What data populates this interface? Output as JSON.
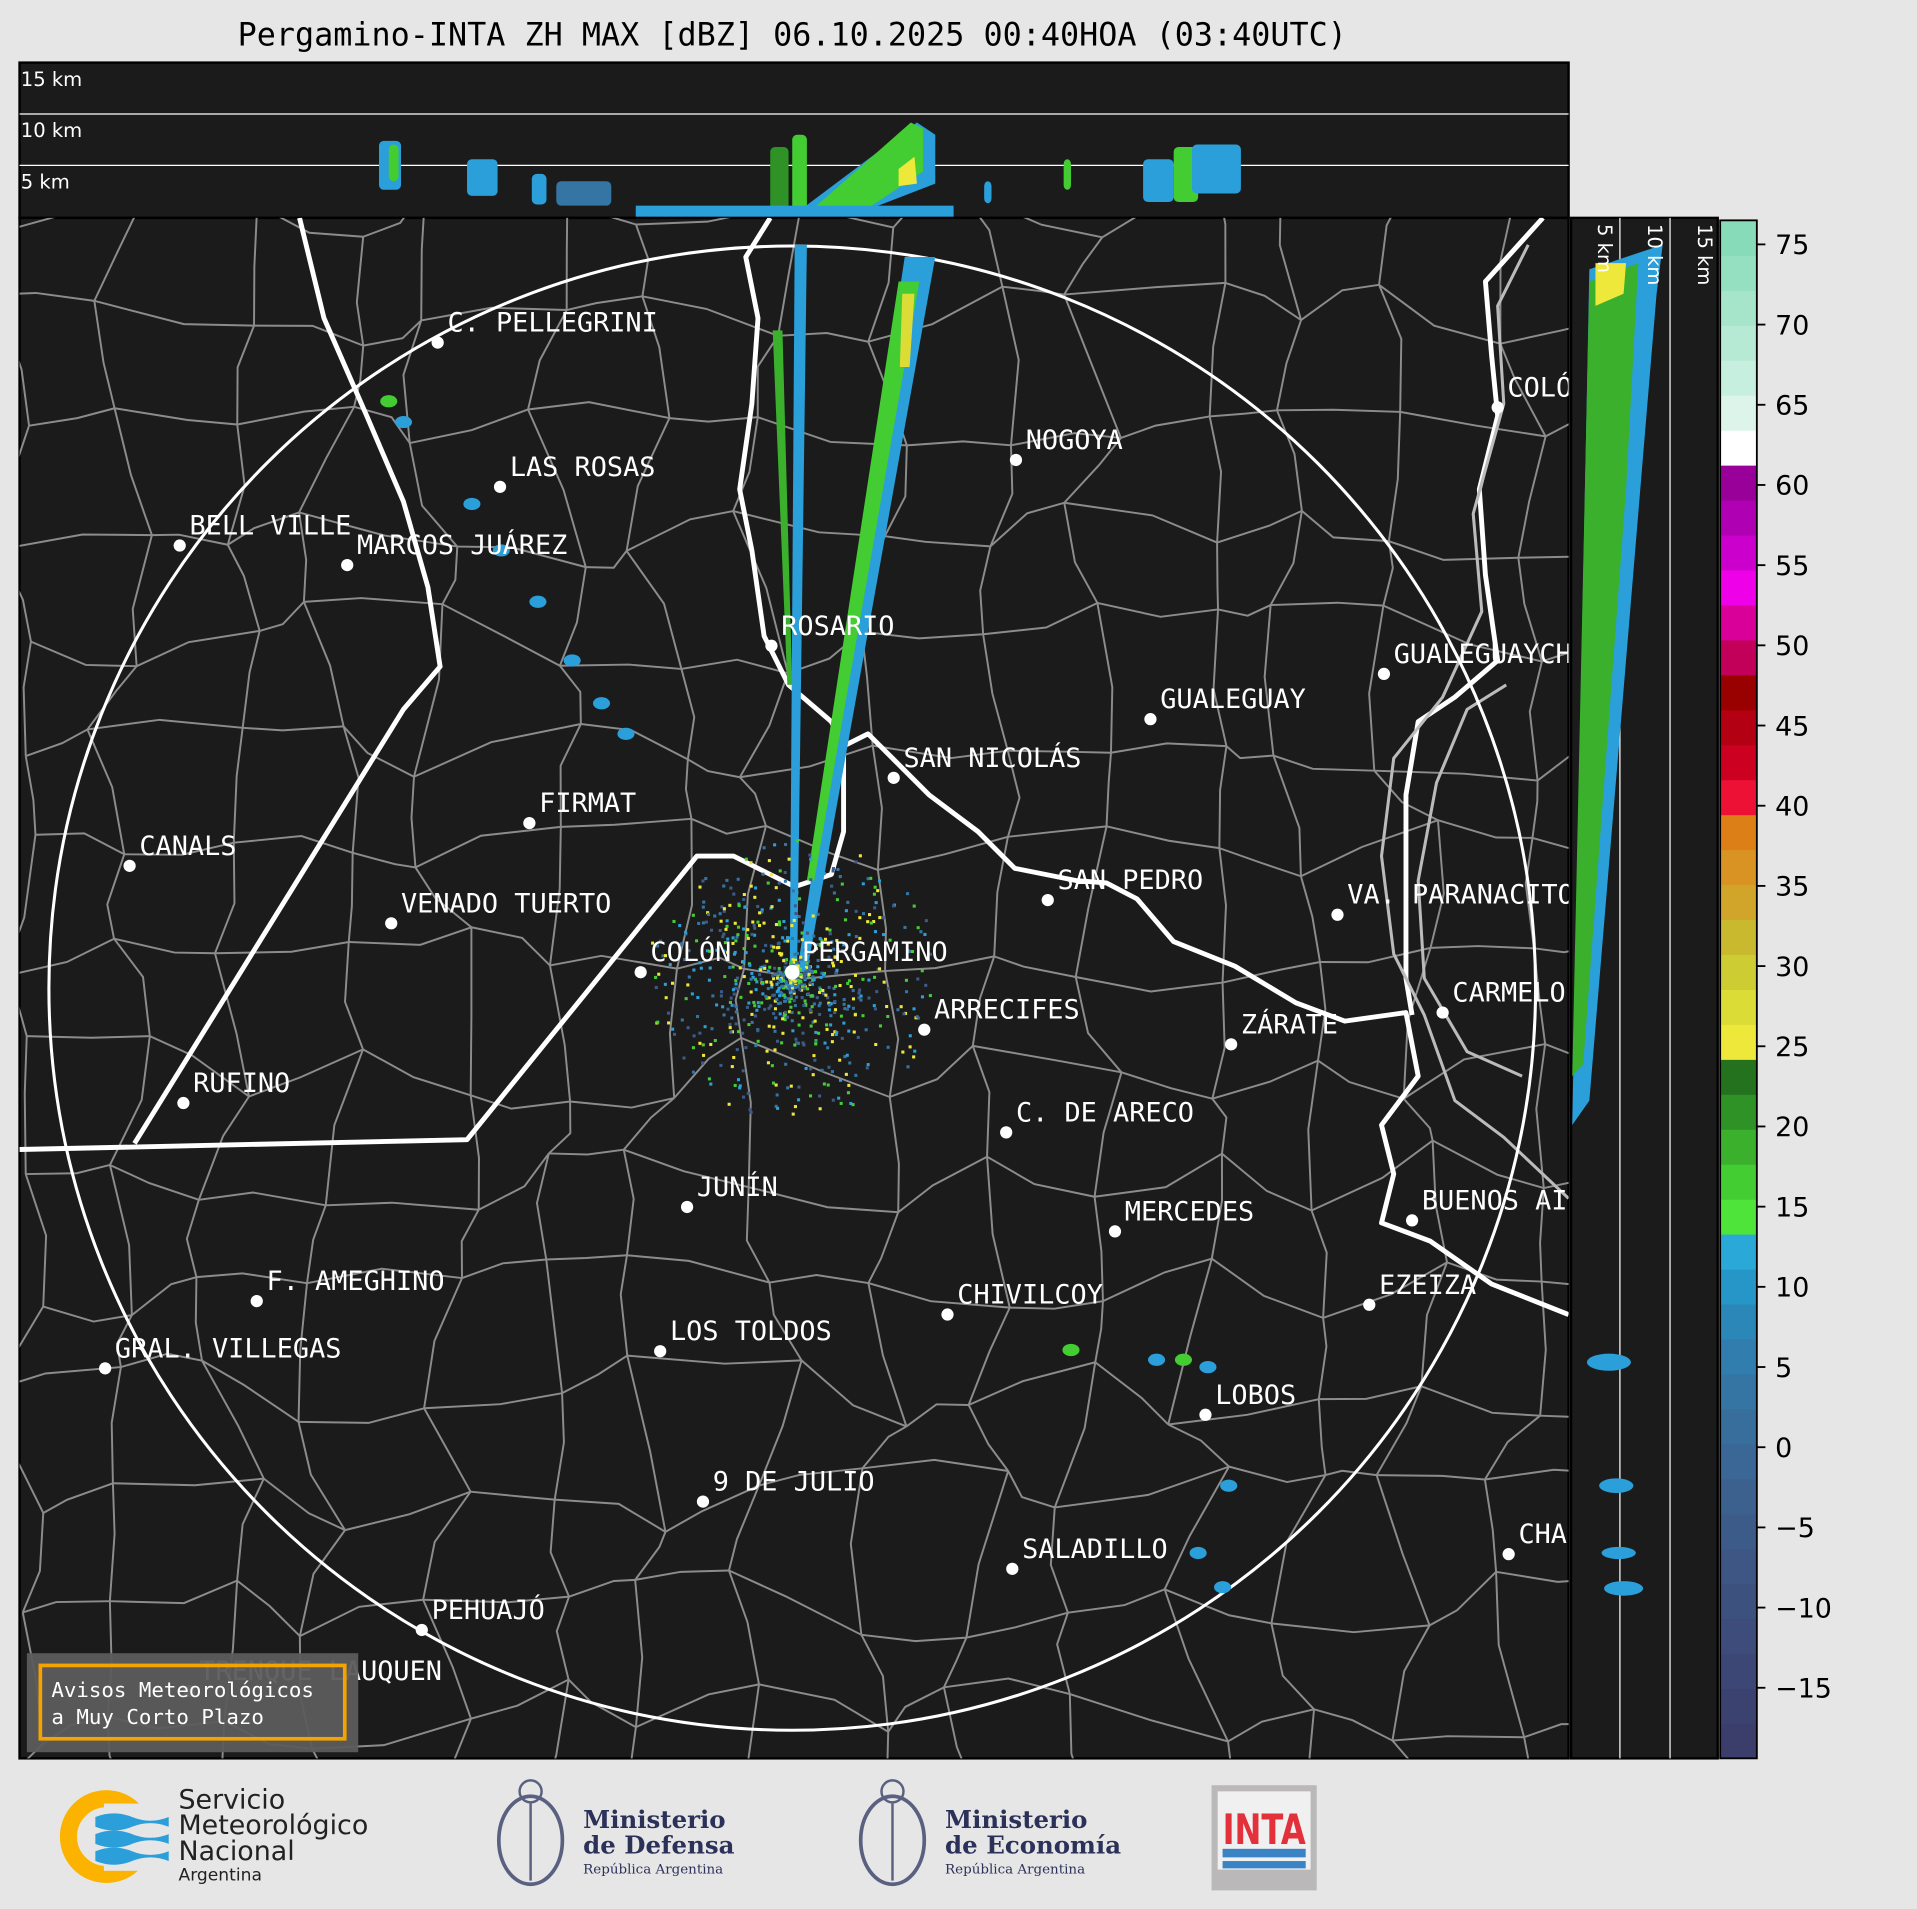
{
  "title": "Pergamino-INTA ZH MAX [dBZ] 06.10.2025 00:40HOA (03:40UTC)",
  "top_panel": {
    "labels": [
      "15 km",
      "10 km",
      "5 km"
    ]
  },
  "side_panel": {
    "labels": [
      "5 km",
      "10 km",
      "15 km"
    ]
  },
  "radar_site": "PERGAMINO",
  "cities": [
    "C. PELLEGRINI",
    "LAS ROSAS",
    "BELL VILLE",
    "MARCOS JUÁREZ",
    "NOGOYA",
    "ROSARIO",
    "GUALEGUAY",
    "GUALEGUAYCHÚ",
    "COLÓN",
    "SAN NICOLÁS",
    "FIRMAT",
    "CANALS",
    "SAN PEDRO",
    "VENADO TUERTO",
    "VA. PARANACITO",
    "COLÓN",
    "CARMELO",
    "ARRECIFES",
    "ZÁRATE",
    "RUFINO",
    "C. DE ARECO",
    "JUNÍN",
    "BUENOS AIRES",
    "MERCEDES",
    "F. AMEGHINO",
    "EZEIZA",
    "CHIVILCOY",
    "LOS TOLDOS",
    "GRAL. VILLEGAS",
    "LOBOS",
    "9 DE JULIO",
    "CHASCOMÚS",
    "SALADILLO",
    "PEHUAJÓ",
    "TRENQUE LAUQUEN"
  ],
  "warning_box": {
    "line1": "Avisos Meteorológicos",
    "line2": "a Muy Corto Plazo",
    "border_color": "#f5a300"
  },
  "colorbar": {
    "unit": "dBZ",
    "min": -19.4,
    "max": 76.5,
    "ticks": [
      75,
      70,
      65,
      60,
      55,
      50,
      45,
      40,
      35,
      30,
      25,
      20,
      15,
      10,
      5,
      0,
      -5,
      -10,
      -15
    ],
    "tick_labels": [
      "75",
      "70",
      "65",
      "60",
      "55",
      "50",
      "45",
      "40",
      "35",
      "30",
      "25",
      "20",
      "15",
      "10",
      "5",
      "0",
      "−5",
      "−10",
      "−15"
    ],
    "colors": [
      "#3b3d6b",
      "#3c4270",
      "#3c4775",
      "#3d4c7a",
      "#3d517f",
      "#3d5684",
      "#3d5b89",
      "#3c618f",
      "#3a6795",
      "#386e9c",
      "#3575a4",
      "#317dad",
      "#2b87b8",
      "#2696c8",
      "#2aa9d9",
      "#4ee43a",
      "#44cc33",
      "#3ab02d",
      "#2f9226",
      "#25721e",
      "#eee83a",
      "#dcdc37",
      "#cdcc33",
      "#c9b92e",
      "#d1a52a",
      "#d99323",
      "#dd7f17",
      "#ee1136",
      "#cc0020",
      "#b30012",
      "#990000",
      "#c2005a",
      "#d90099",
      "#ee00e8",
      "#cc00cc",
      "#b000b3",
      "#990099",
      "#ffffff",
      "#dcf4ea",
      "#c6efdf",
      "#b6ead5",
      "#a7e5cb",
      "#96e0c2",
      "#88dbb9"
    ]
  },
  "logos": {
    "smn": {
      "line1": "Servicio",
      "line2": "Meteorológico",
      "line3": "Nacional",
      "line4": "Argentina"
    },
    "defensa": {
      "line1": "Ministerio",
      "line2": "de Defensa",
      "line3": "República Argentina"
    },
    "economia": {
      "line1": "Ministerio",
      "line2": "de Economía",
      "line3": "República Argentina"
    },
    "inta": {
      "text": "INTA"
    }
  },
  "colors": {
    "map_bg": "#1b1b1b",
    "page_bg": "#e6e6e6",
    "boundary": "#8c8c8c",
    "smn_orange": "#fbb300",
    "smn_blue": "#2a9fd9",
    "ministry_navy": "#2b3158",
    "inta_red": "#e2313b"
  }
}
